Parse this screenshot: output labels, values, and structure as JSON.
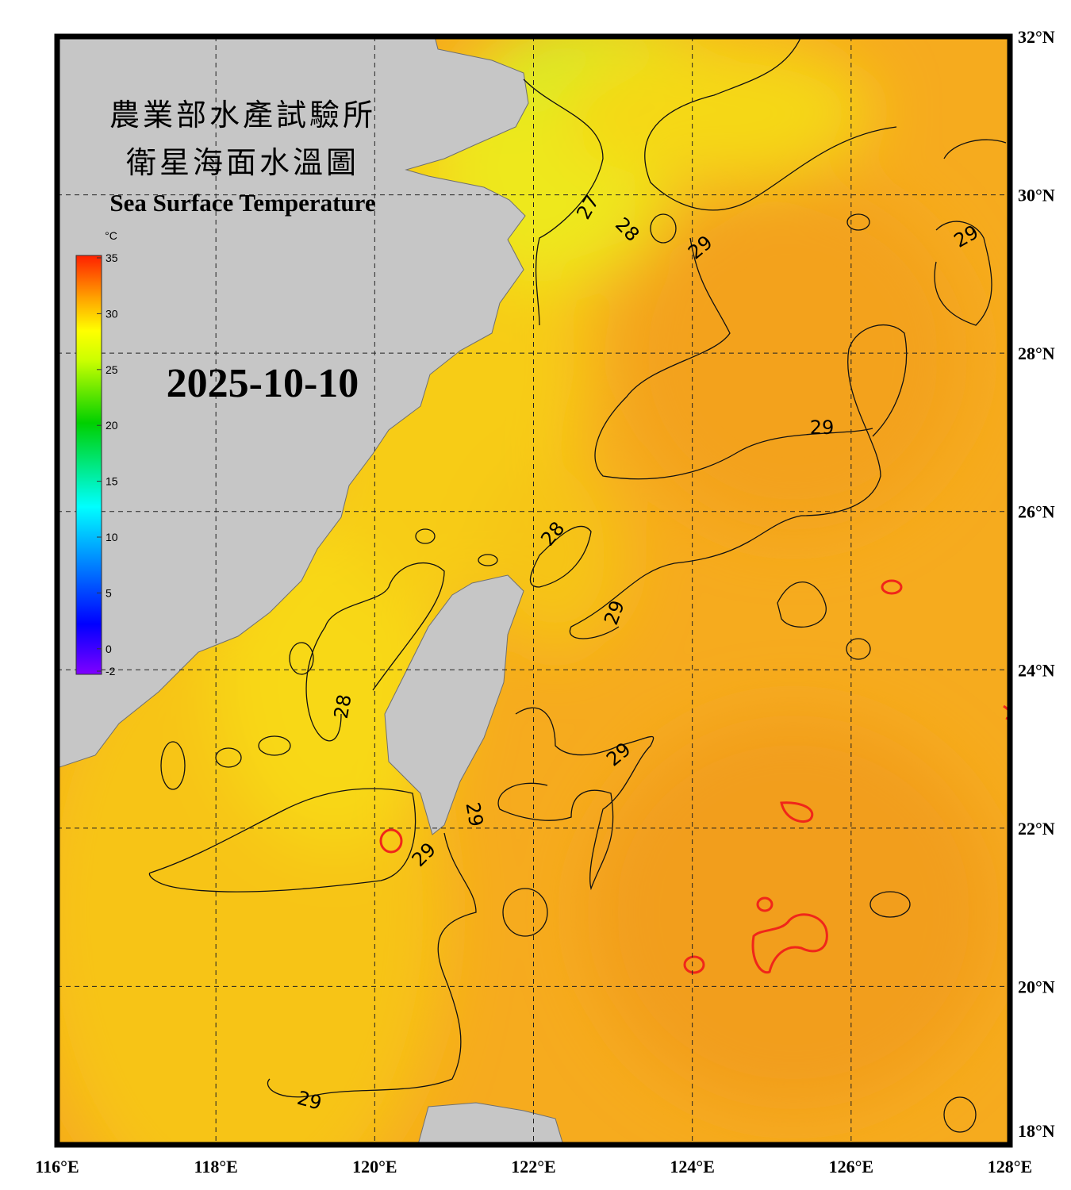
{
  "title_zh_1": "農業部水產試驗所",
  "title_zh_2": "衛星海面水溫圖",
  "title_en": "Sea Surface Temperature",
  "date": "2025-10-10",
  "colorbar": {
    "unit": "°C",
    "range": [
      -2,
      35
    ],
    "ticks": [
      35,
      30,
      25,
      20,
      15,
      10,
      5,
      0,
      -2
    ]
  },
  "map": {
    "lon_range": [
      116,
      128
    ],
    "lat_range": [
      18,
      32
    ],
    "lon_ticks": [
      {
        "value": 116,
        "label": "116°E"
      },
      {
        "value": 118,
        "label": "118°E"
      },
      {
        "value": 120,
        "label": "120°E"
      },
      {
        "value": 122,
        "label": "122°E"
      },
      {
        "value": 124,
        "label": "124°E"
      },
      {
        "value": 126,
        "label": "126°E"
      },
      {
        "value": 128,
        "label": "128°E"
      }
    ],
    "lat_ticks": [
      {
        "value": 32,
        "label": "32°N"
      },
      {
        "value": 30,
        "label": "30°N"
      },
      {
        "value": 28,
        "label": "28°N"
      },
      {
        "value": 26,
        "label": "26°N"
      },
      {
        "value": 24,
        "label": "24°N"
      },
      {
        "value": 22,
        "label": "22°N"
      },
      {
        "value": 20,
        "label": "20°N"
      },
      {
        "value": 18,
        "label": "18°N"
      }
    ]
  },
  "contour_labels": [
    27,
    28,
    29,
    29,
    29,
    28,
    29,
    28,
    29,
    29,
    29,
    29
  ]
}
